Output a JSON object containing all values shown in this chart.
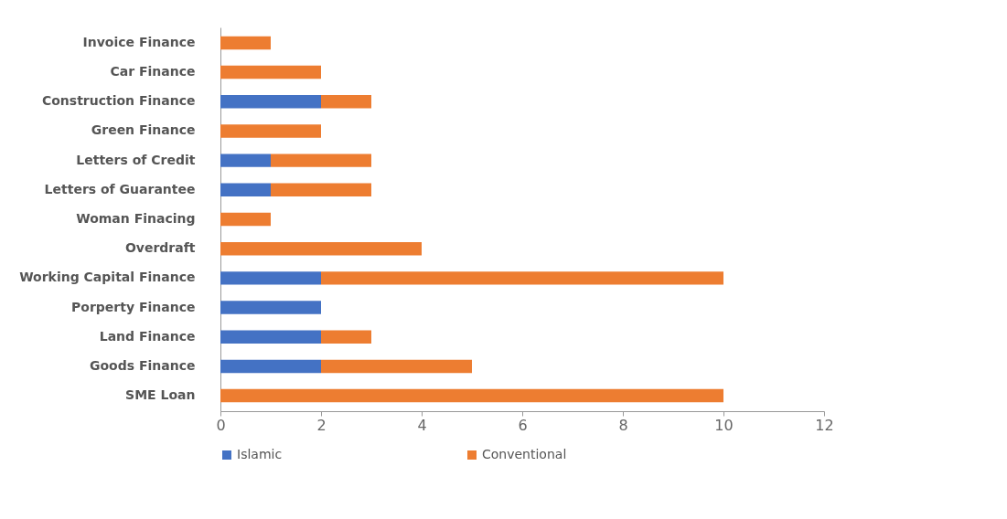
{
  "chart_data": {
    "type": "bar",
    "orientation": "horizontal",
    "stacked": true,
    "categories": [
      "Invoice Finance",
      "Car Finance",
      "Construction Finance",
      "Green Finance",
      "Letters of Credit",
      "Letters of Guarantee",
      "Woman Finacing",
      "Overdraft",
      "Working Capital Finance",
      "Porperty Finance",
      "Land Finance",
      "Goods Finance",
      "SME Loan"
    ],
    "series": [
      {
        "name": "Islamic",
        "color": "#4472c4",
        "values": [
          null,
          null,
          2,
          null,
          1,
          1,
          null,
          null,
          2,
          2,
          2,
          2,
          null
        ]
      },
      {
        "name": "Conventional",
        "color": "#ed7d31",
        "values": [
          1,
          2,
          1,
          2,
          2,
          2,
          1,
          4,
          8,
          null,
          1,
          3,
          10
        ]
      }
    ],
    "xlim": [
      0,
      12
    ],
    "xticks": [
      0,
      2,
      4,
      6,
      8,
      10,
      12
    ],
    "grid": false,
    "legend": "bottom"
  }
}
